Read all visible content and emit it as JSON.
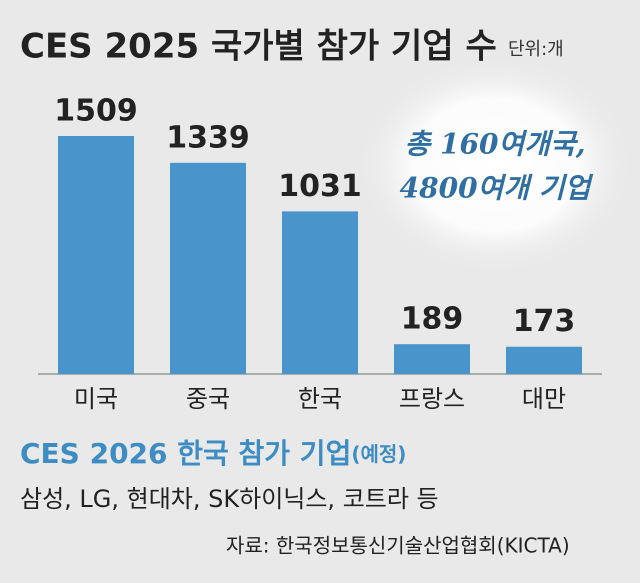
{
  "chart_data": {
    "type": "bar",
    "title": "CES 2025 국가별 참가 기업 수",
    "unit": "단위:개",
    "annotation": [
      "총 160여개국,",
      "4800여개 기업"
    ],
    "categories": [
      "미국",
      "중국",
      "한국",
      "프랑스",
      "대만"
    ],
    "values": [
      1509,
      1339,
      1031,
      189,
      173
    ],
    "color": "#4a94cc"
  },
  "korea_2026": {
    "title": "CES 2026 한국 참가 기업",
    "note": "(예정)",
    "companies": "삼성, LG, 현대차, SK하이닉스, 코트라 등"
  },
  "source": "자료: 한국정보통신기술산업협회(KICTA)"
}
